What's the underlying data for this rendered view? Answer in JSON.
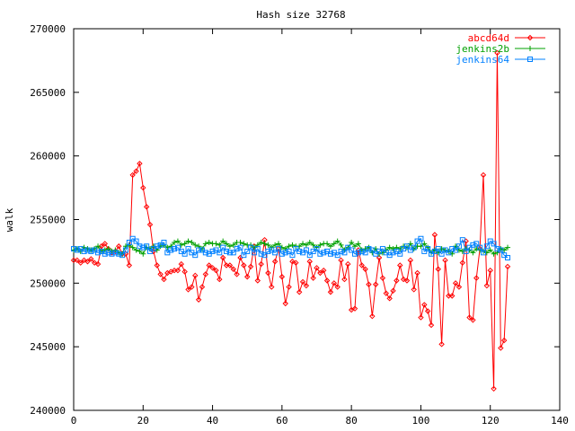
{
  "chart_data": {
    "type": "line",
    "title": "Hash size 32768",
    "ylabel": "walk",
    "xlabel": "",
    "xlim": [
      0,
      140
    ],
    "ylim": [
      240000,
      270000
    ],
    "xticks": [
      0,
      20,
      40,
      60,
      80,
      100,
      120,
      140
    ],
    "yticks": [
      240000,
      245000,
      250000,
      255000,
      260000,
      265000,
      270000
    ],
    "grid": false,
    "legend_position": "top-right",
    "series": [
      {
        "name": "abcd64d",
        "color": "#ff0000",
        "marker": "diamond",
        "x": [
          0,
          1,
          2,
          3,
          4,
          5,
          6,
          7,
          8,
          9,
          10,
          11,
          12,
          13,
          14,
          15,
          16,
          17,
          18,
          19,
          20,
          21,
          22,
          23,
          24,
          25,
          26,
          27,
          28,
          29,
          30,
          31,
          32,
          33,
          34,
          35,
          36,
          37,
          38,
          39,
          40,
          41,
          42,
          43,
          44,
          45,
          46,
          47,
          48,
          49,
          50,
          51,
          52,
          53,
          54,
          55,
          56,
          57,
          58,
          59,
          60,
          61,
          62,
          63,
          64,
          65,
          66,
          67,
          68,
          69,
          70,
          71,
          72,
          73,
          74,
          75,
          76,
          77,
          78,
          79,
          80,
          81,
          82,
          83,
          84,
          85,
          86,
          87,
          88,
          89,
          90,
          91,
          92,
          93,
          94,
          95,
          96,
          97,
          98,
          99,
          100,
          101,
          102,
          103,
          104,
          105,
          106,
          107,
          108,
          109,
          110,
          111,
          112,
          113,
          114,
          115,
          116,
          117,
          118,
          119,
          120,
          121,
          122,
          123,
          124,
          125
        ],
        "y": [
          251800,
          251800,
          251600,
          251800,
          251700,
          251900,
          251600,
          251500,
          252900,
          253100,
          252700,
          252400,
          252500,
          252900,
          252300,
          252300,
          251400,
          258500,
          258800,
          259400,
          257500,
          256000,
          254600,
          252500,
          251400,
          250700,
          250300,
          250800,
          250900,
          251000,
          251000,
          251500,
          250900,
          249500,
          249700,
          250600,
          248700,
          249700,
          250700,
          251400,
          251200,
          251000,
          250300,
          252000,
          251400,
          251400,
          251100,
          250700,
          252000,
          251400,
          250500,
          251300,
          252900,
          250200,
          251500,
          253400,
          250800,
          249700,
          251700,
          252700,
          250500,
          248400,
          249700,
          251700,
          251600,
          249300,
          250100,
          249800,
          251700,
          250400,
          251200,
          250800,
          251000,
          250200,
          249300,
          250000,
          249700,
          251800,
          250300,
          251500,
          247900,
          248000,
          252600,
          251400,
          251100,
          249900,
          247400,
          249900,
          252000,
          250400,
          249200,
          248800,
          249400,
          250200,
          251400,
          250300,
          250200,
          251800,
          249500,
          250800,
          247300,
          248300,
          247800,
          246700,
          253800,
          251100,
          245200,
          251800,
          249000,
          249000,
          250000,
          249700,
          251600,
          253300,
          247300,
          247100,
          250400,
          252700,
          258500,
          249800,
          251000,
          241700,
          268100,
          244900,
          245500,
          251300
        ]
      },
      {
        "name": "jenkins2b",
        "color": "#00a000",
        "marker": "plus",
        "x": [
          0,
          1,
          2,
          3,
          4,
          5,
          6,
          7,
          8,
          9,
          10,
          11,
          12,
          13,
          14,
          15,
          16,
          17,
          18,
          19,
          20,
          21,
          22,
          23,
          24,
          25,
          26,
          27,
          28,
          29,
          30,
          31,
          32,
          33,
          34,
          35,
          36,
          37,
          38,
          39,
          40,
          41,
          42,
          43,
          44,
          45,
          46,
          47,
          48,
          49,
          50,
          51,
          52,
          53,
          54,
          55,
          56,
          57,
          58,
          59,
          60,
          61,
          62,
          63,
          64,
          65,
          66,
          67,
          68,
          69,
          70,
          71,
          72,
          73,
          74,
          75,
          76,
          77,
          78,
          79,
          80,
          81,
          82,
          83,
          84,
          85,
          86,
          87,
          88,
          89,
          90,
          91,
          92,
          93,
          94,
          95,
          96,
          97,
          98,
          99,
          100,
          101,
          102,
          103,
          104,
          105,
          106,
          107,
          108,
          109,
          110,
          111,
          112,
          113,
          114,
          115,
          116,
          117,
          118,
          119,
          120,
          121,
          122,
          123,
          124,
          125
        ],
        "y": [
          252600,
          252700,
          252500,
          252800,
          252700,
          252600,
          252700,
          252900,
          252500,
          252600,
          252700,
          252500,
          252600,
          252400,
          252300,
          252900,
          253000,
          252800,
          252600,
          252500,
          252300,
          252800,
          252700,
          252900,
          252600,
          252900,
          253000,
          252800,
          252900,
          253200,
          253300,
          253000,
          253100,
          253300,
          253200,
          253000,
          252900,
          252700,
          253100,
          253200,
          253100,
          253100,
          253000,
          253300,
          253100,
          252900,
          253000,
          253200,
          253200,
          253100,
          253000,
          253000,
          252800,
          253000,
          253200,
          253100,
          253000,
          252800,
          253000,
          253100,
          252800,
          252700,
          252900,
          253000,
          252900,
          252900,
          253100,
          253000,
          253200,
          253000,
          252800,
          253000,
          253100,
          253100,
          252900,
          253100,
          253300,
          253000,
          252600,
          252800,
          253200,
          252900,
          253100,
          252600,
          252700,
          252800,
          252400,
          252700,
          252300,
          252400,
          252600,
          252800,
          252700,
          252800,
          252700,
          252900,
          252800,
          253100,
          252700,
          252900,
          252900,
          253100,
          252800,
          252400,
          252600,
          252400,
          252700,
          252600,
          252500,
          252300,
          252900,
          252600,
          252500,
          252700,
          252600,
          252400,
          252700,
          252600,
          252500,
          252400,
          252600,
          252300,
          252400,
          252700,
          252600,
          252800
        ]
      },
      {
        "name": "jenkins64",
        "color": "#0080ff",
        "marker": "square",
        "x": [
          0,
          1,
          2,
          3,
          4,
          5,
          6,
          7,
          8,
          9,
          10,
          11,
          12,
          13,
          14,
          15,
          16,
          17,
          18,
          19,
          20,
          21,
          22,
          23,
          24,
          25,
          26,
          27,
          28,
          29,
          30,
          31,
          32,
          33,
          34,
          35,
          36,
          37,
          38,
          39,
          40,
          41,
          42,
          43,
          44,
          45,
          46,
          47,
          48,
          49,
          50,
          51,
          52,
          53,
          54,
          55,
          56,
          57,
          58,
          59,
          60,
          61,
          62,
          63,
          64,
          65,
          66,
          67,
          68,
          69,
          70,
          71,
          72,
          73,
          74,
          75,
          76,
          77,
          78,
          79,
          80,
          81,
          82,
          83,
          84,
          85,
          86,
          87,
          88,
          89,
          90,
          91,
          92,
          93,
          94,
          95,
          96,
          97,
          98,
          99,
          100,
          101,
          102,
          103,
          104,
          105,
          106,
          107,
          108,
          109,
          110,
          111,
          112,
          113,
          114,
          115,
          116,
          117,
          118,
          119,
          120,
          121,
          122,
          123,
          124,
          125
        ],
        "y": [
          252700,
          252600,
          252700,
          252500,
          252600,
          252500,
          252600,
          252400,
          252500,
          252300,
          252400,
          252300,
          252400,
          252300,
          252200,
          252600,
          253200,
          253500,
          253300,
          252900,
          252800,
          252900,
          252500,
          252700,
          252900,
          253000,
          253200,
          252400,
          252600,
          252700,
          252800,
          252500,
          252300,
          252700,
          252400,
          252200,
          252600,
          252600,
          252400,
          252300,
          252500,
          252600,
          252400,
          252800,
          252500,
          252400,
          252400,
          252700,
          252800,
          252200,
          252500,
          252800,
          252400,
          252700,
          252300,
          252200,
          252500,
          252600,
          252400,
          252700,
          252300,
          252400,
          252500,
          252200,
          252700,
          252500,
          252400,
          252600,
          252200,
          252500,
          252700,
          252300,
          252400,
          252500,
          252300,
          252400,
          252200,
          252500,
          252400,
          252800,
          252600,
          252300,
          252400,
          252500,
          252400,
          252700,
          252600,
          252300,
          252500,
          252700,
          252400,
          252200,
          252400,
          252500,
          252300,
          252700,
          252900,
          252600,
          252800,
          253300,
          253500,
          252500,
          252700,
          252300,
          252500,
          252700,
          252300,
          252600,
          252400,
          252700,
          252600,
          252900,
          253400,
          252500,
          252800,
          253000,
          253100,
          252800,
          252400,
          252900,
          253300,
          253100,
          252700,
          252600,
          252200,
          252000
        ]
      }
    ]
  }
}
